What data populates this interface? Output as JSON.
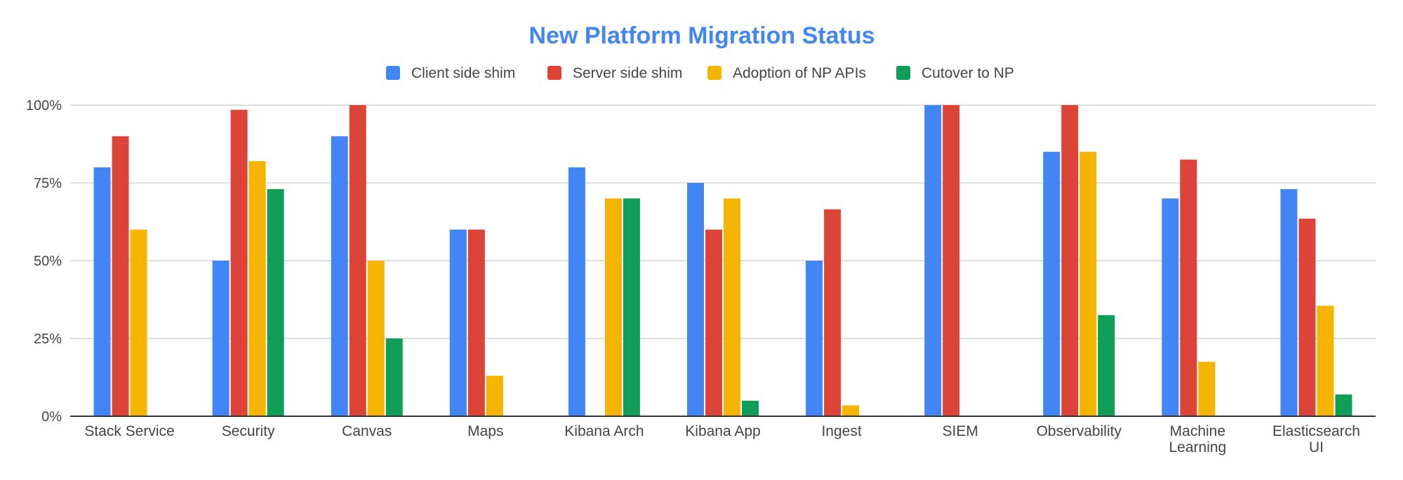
{
  "chart_data": {
    "type": "bar",
    "title": "New Platform Migration Status",
    "xlabel": "",
    "ylabel": "",
    "ylim": [
      0,
      100
    ],
    "yticks": [
      0,
      25,
      50,
      75,
      100
    ],
    "ytick_labels": [
      "0%",
      "25%",
      "50%",
      "75%",
      "100%"
    ],
    "grid": true,
    "legend_position": "top",
    "categories": [
      [
        "Stack Service"
      ],
      [
        "Security"
      ],
      [
        "Canvas"
      ],
      [
        "Maps"
      ],
      [
        "Kibana Arch"
      ],
      [
        "Kibana App"
      ],
      [
        "Ingest"
      ],
      [
        "SIEM"
      ],
      [
        "Observability"
      ],
      [
        "Machine",
        "Learning"
      ],
      [
        "Elasticsearch",
        "UI"
      ]
    ],
    "series": [
      {
        "name": "Client side shim",
        "color": "#4285f4",
        "values": [
          80,
          50,
          90,
          60,
          80,
          75,
          50,
          100,
          85,
          70,
          73
        ]
      },
      {
        "name": "Server side shim",
        "color": "#db4437",
        "values": [
          90,
          98.5,
          100,
          60,
          0,
          60,
          66.5,
          100,
          100,
          82.5,
          63.5
        ]
      },
      {
        "name": "Adoption of NP APIs",
        "color": "#f4b400",
        "values": [
          60,
          82,
          50,
          13,
          70,
          70,
          3.5,
          0,
          85,
          17.5,
          35.5
        ]
      },
      {
        "name": "Cutover to NP",
        "color": "#0f9d58",
        "values": [
          0,
          73,
          25,
          0,
          70,
          5,
          0,
          0,
          32.5,
          0,
          7
        ]
      }
    ]
  }
}
